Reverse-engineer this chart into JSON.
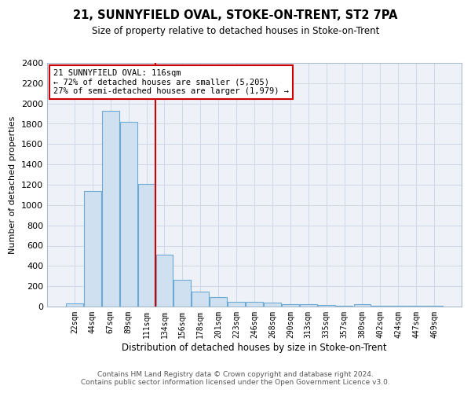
{
  "title": "21, SUNNYFIELD OVAL, STOKE-ON-TRENT, ST2 7PA",
  "subtitle": "Size of property relative to detached houses in Stoke-on-Trent",
  "xlabel": "Distribution of detached houses by size in Stoke-on-Trent",
  "ylabel": "Number of detached properties",
  "bar_color": "#cfe0f0",
  "bar_edge_color": "#6aaad4",
  "categories": [
    "22sqm",
    "44sqm",
    "67sqm",
    "89sqm",
    "111sqm",
    "134sqm",
    "156sqm",
    "178sqm",
    "201sqm",
    "223sqm",
    "246sqm",
    "268sqm",
    "290sqm",
    "313sqm",
    "335sqm",
    "357sqm",
    "380sqm",
    "402sqm",
    "424sqm",
    "447sqm",
    "469sqm"
  ],
  "values": [
    30,
    1140,
    1930,
    1820,
    1205,
    510,
    265,
    150,
    90,
    50,
    45,
    40,
    25,
    20,
    15,
    10,
    20,
    5,
    5,
    5,
    5
  ],
  "ylim": [
    0,
    2400
  ],
  "yticks": [
    0,
    200,
    400,
    600,
    800,
    1000,
    1200,
    1400,
    1600,
    1800,
    2000,
    2200,
    2400
  ],
  "property_label": "21 SUNNYFIELD OVAL: 116sqm",
  "annotation_line1": "← 72% of detached houses are smaller (5,205)",
  "annotation_line2": "27% of semi-detached houses are larger (1,979) →",
  "vline_index": 4.5,
  "footer_line1": "Contains HM Land Registry data © Crown copyright and database right 2024.",
  "footer_line2": "Contains public sector information licensed under the Open Government Licence v3.0.",
  "background_color": "#eef2f8",
  "grid_color": "#d0d8e8"
}
